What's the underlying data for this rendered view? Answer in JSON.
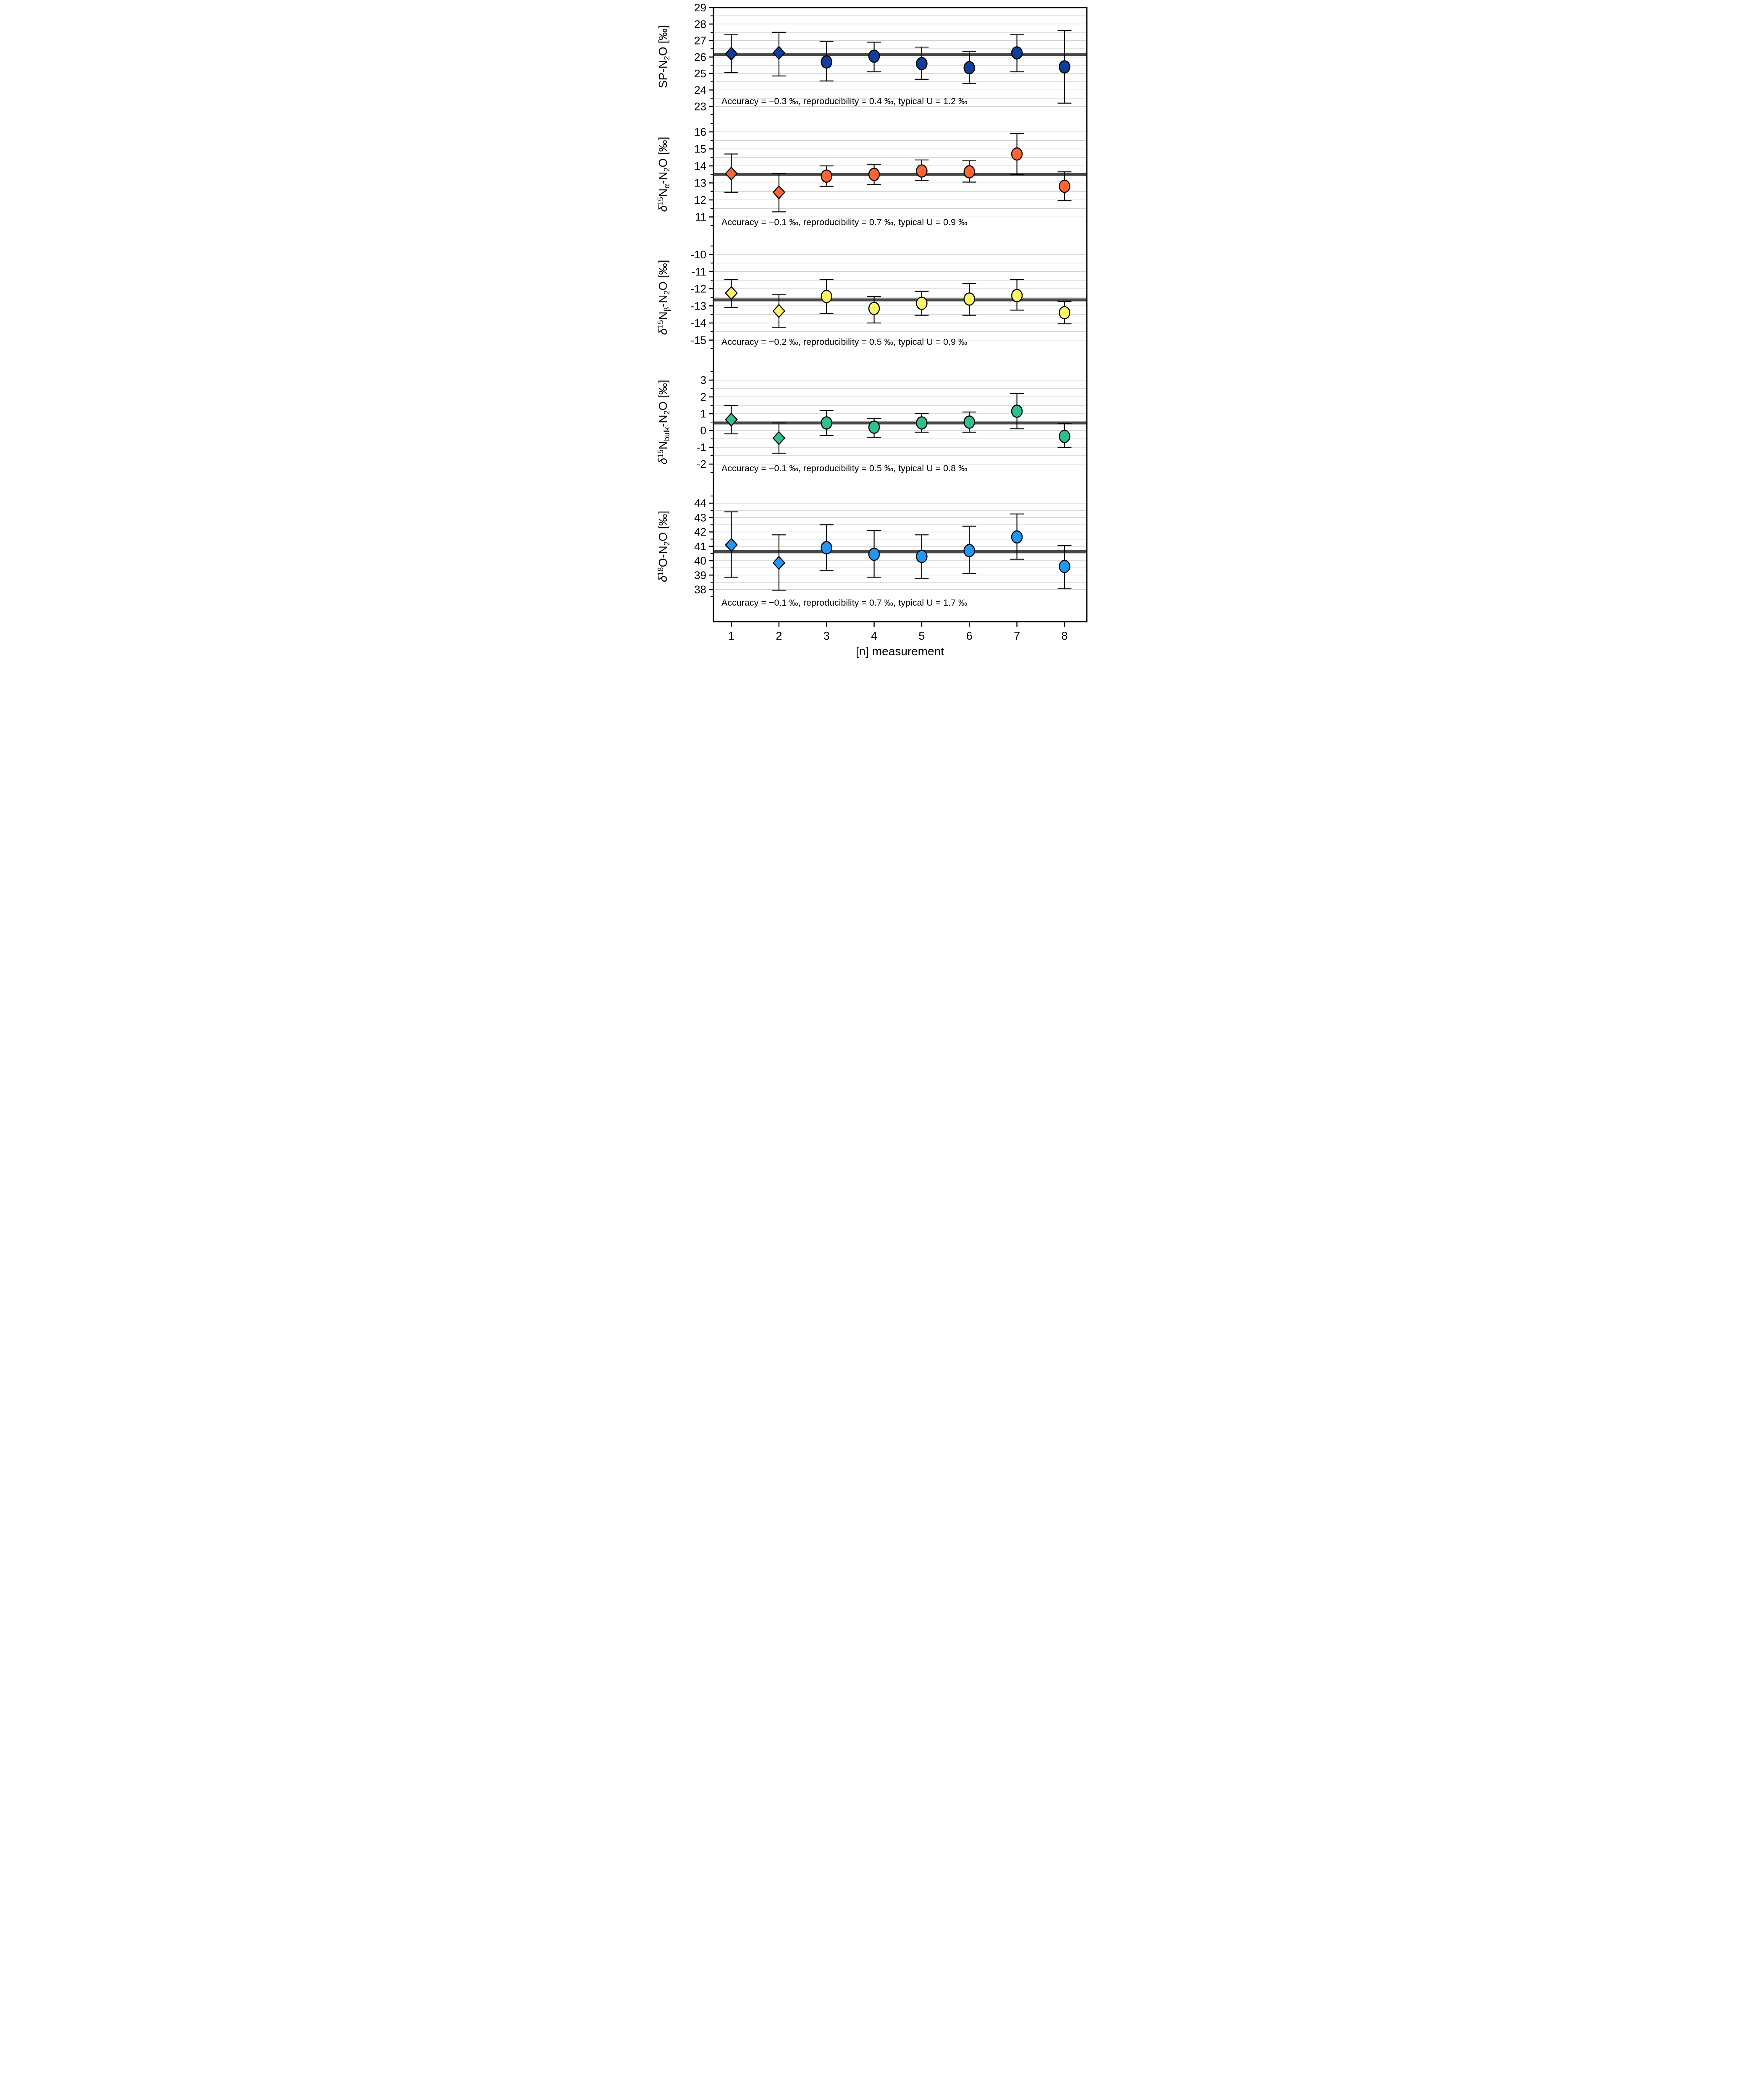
{
  "x_axis": {
    "label": "[n] measurement",
    "ticks": [
      "1",
      "2",
      "3",
      "4",
      "5",
      "6",
      "7",
      "8"
    ]
  },
  "colors": {
    "reference_line": "#484848",
    "gridline": "#d2d2d2",
    "marker_stroke": "#000000",
    "panel1_marker": "#103e99",
    "panel2_marker": "#fa6533",
    "panel3_marker": "#fbf566",
    "panel4_marker": "#2fc08c",
    "panel5_marker": "#2296f3"
  },
  "chart_data": [
    {
      "type": "scatter",
      "panel": 1,
      "ylabel_text": "SP-N₂O [‰]",
      "ylabel_parts": [
        {
          "t": "SP-N"
        },
        {
          "t": "2",
          "s": "sub"
        },
        {
          "t": "O [‰]"
        }
      ],
      "ylim": [
        22.5,
        29
      ],
      "yticks": [
        29,
        28,
        27,
        26,
        25,
        24,
        23
      ],
      "grid_step": 0.5,
      "legend": "none",
      "reference_value": 26.15,
      "marker_color": "#103e99",
      "markers": [
        "diamond",
        "diamond",
        "circle",
        "circle",
        "circle",
        "circle",
        "circle",
        "circle"
      ],
      "x": [
        1,
        2,
        3,
        4,
        5,
        6,
        7,
        8
      ],
      "values": [
        26.2,
        26.25,
        25.7,
        26.05,
        25.6,
        25.35,
        26.25,
        25.4
      ],
      "err_lo": [
        25.05,
        24.85,
        24.55,
        25.1,
        24.65,
        24.4,
        25.1,
        23.2
      ],
      "err_hi": [
        27.35,
        27.5,
        26.95,
        26.9,
        26.6,
        26.35,
        27.35,
        27.6
      ],
      "annotation": "Accuracy  =  −0.3 ‰, reproducibility  =  0.4 ‰, typical U  =  1.2 ‰"
    },
    {
      "type": "scatter",
      "panel": 2,
      "ylabel_text": "δ¹⁵Nα-N₂O [‰]",
      "ylabel_parts": [
        {
          "t": "δ",
          "s": "i"
        },
        {
          "t": "15",
          "s": "sup"
        },
        {
          "t": "N"
        },
        {
          "t": "α",
          "s": "sub"
        },
        {
          "t": "-N"
        },
        {
          "t": "2",
          "s": "sub"
        },
        {
          "t": "O [‰]"
        }
      ],
      "ylim": [
        10.5,
        16.6
      ],
      "yticks": [
        16,
        15,
        14,
        13,
        12,
        11
      ],
      "grid_step": 0.5,
      "legend": "none",
      "reference_value": 13.5,
      "marker_color": "#fa6533",
      "markers": [
        "diamond",
        "diamond",
        "circle",
        "circle",
        "circle",
        "circle",
        "circle",
        "circle"
      ],
      "x": [
        1,
        2,
        3,
        4,
        5,
        6,
        7,
        8
      ],
      "values": [
        13.55,
        12.45,
        13.4,
        13.5,
        13.7,
        13.65,
        14.7,
        12.8
      ],
      "err_lo": [
        12.45,
        11.3,
        12.8,
        12.9,
        13.15,
        13.05,
        13.5,
        11.95
      ],
      "err_hi": [
        14.7,
        13.55,
        14.0,
        14.1,
        14.35,
        14.3,
        15.9,
        13.65
      ],
      "annotation": "Accuracy  =  −0.1 ‰, reproducibility  =  0.7 ‰, typical U  =  0.9 ‰"
    },
    {
      "type": "scatter",
      "panel": 3,
      "ylabel_text": "δ¹⁵Nβ-N₂O [‰]",
      "ylabel_parts": [
        {
          "t": "δ",
          "s": "i"
        },
        {
          "t": "15",
          "s": "sup"
        },
        {
          "t": "N"
        },
        {
          "t": "β",
          "s": "sub"
        },
        {
          "t": "-N"
        },
        {
          "t": "2",
          "s": "sub"
        },
        {
          "t": "O [‰]"
        }
      ],
      "ylim": [
        -15.6,
        -9.4
      ],
      "yticks": [
        -10,
        -11,
        -12,
        -13,
        -14,
        -15
      ],
      "grid_step": 0.5,
      "legend": "none",
      "reference_value": -12.65,
      "marker_color": "#fbf566",
      "markers": [
        "diamond",
        "diamond",
        "circle",
        "circle",
        "circle",
        "circle",
        "circle",
        "circle"
      ],
      "x": [
        1,
        2,
        3,
        4,
        5,
        6,
        7,
        8
      ],
      "values": [
        -12.25,
        -13.3,
        -12.45,
        -13.15,
        -12.85,
        -12.6,
        -12.4,
        -13.4
      ],
      "err_lo": [
        -13.1,
        -14.25,
        -13.45,
        -14.0,
        -13.55,
        -13.55,
        -13.25,
        -14.05
      ],
      "err_hi": [
        -11.45,
        -12.35,
        -11.45,
        -12.45,
        -12.15,
        -11.7,
        -11.45,
        -12.75
      ],
      "annotation": "Accuracy  =  −0.2 ‰, reproducibility  =  0.5 ‰, typical U  =  0.9 ‰"
    },
    {
      "type": "scatter",
      "panel": 4,
      "ylabel_text": "δ¹⁵Nbulk-N₂O [‰]",
      "ylabel_parts": [
        {
          "t": "δ",
          "s": "i"
        },
        {
          "t": "15",
          "s": "sup"
        },
        {
          "t": "N"
        },
        {
          "t": "bulk",
          "s": "sub"
        },
        {
          "t": "-N"
        },
        {
          "t": "2",
          "s": "sub"
        },
        {
          "t": "O [‰]"
        }
      ],
      "ylim": [
        -2.6,
        3.4
      ],
      "yticks": [
        3,
        2,
        1,
        0,
        -1,
        -2
      ],
      "grid_step": 0.5,
      "legend": "none",
      "reference_value": 0.45,
      "marker_color": "#2fc08c",
      "markers": [
        "diamond",
        "diamond",
        "circle",
        "circle",
        "circle",
        "circle",
        "circle",
        "circle"
      ],
      "x": [
        1,
        2,
        3,
        4,
        5,
        6,
        7,
        8
      ],
      "values": [
        0.65,
        -0.45,
        0.45,
        0.2,
        0.45,
        0.5,
        1.15,
        -0.35
      ],
      "err_lo": [
        -0.2,
        -1.35,
        -0.3,
        -0.4,
        -0.1,
        -0.1,
        0.1,
        -1.0
      ],
      "err_hi": [
        1.5,
        0.45,
        1.2,
        0.7,
        1.0,
        1.1,
        2.2,
        0.4
      ],
      "annotation": "Accuracy  =  −0.1 ‰, reproducibility  =  0.5 ‰, typical U  =  0.8 ‰"
    },
    {
      "type": "scatter",
      "panel": 5,
      "ylabel_text": "δ¹⁸O-N₂O [‰]",
      "ylabel_parts": [
        {
          "t": "δ",
          "s": "i"
        },
        {
          "t": "18",
          "s": "sup"
        },
        {
          "t": "O-N"
        },
        {
          "t": "2",
          "s": "sub"
        },
        {
          "t": "O [‰]"
        }
      ],
      "ylim": [
        37.4,
        44.4
      ],
      "yticks": [
        44,
        43,
        42,
        41,
        40,
        39,
        38
      ],
      "grid_step": 0.5,
      "legend": "none",
      "reference_value": 40.65,
      "marker_color": "#2296f3",
      "markers": [
        "diamond",
        "diamond",
        "circle",
        "circle",
        "circle",
        "circle",
        "circle",
        "circle"
      ],
      "x": [
        1,
        2,
        3,
        4,
        5,
        6,
        7,
        8
      ],
      "values": [
        41.1,
        39.85,
        40.9,
        40.45,
        40.3,
        40.7,
        41.65,
        39.6
      ],
      "err_lo": [
        38.85,
        37.95,
        39.3,
        38.85,
        38.75,
        39.1,
        40.1,
        38.05
      ],
      "err_hi": [
        43.4,
        41.8,
        42.5,
        42.1,
        41.8,
        42.4,
        43.25,
        41.05
      ],
      "annotation": "Accuracy  =  −0.1 ‰, reproducibility  =  0.7 ‰, typical U  =  1.7 ‰"
    }
  ]
}
